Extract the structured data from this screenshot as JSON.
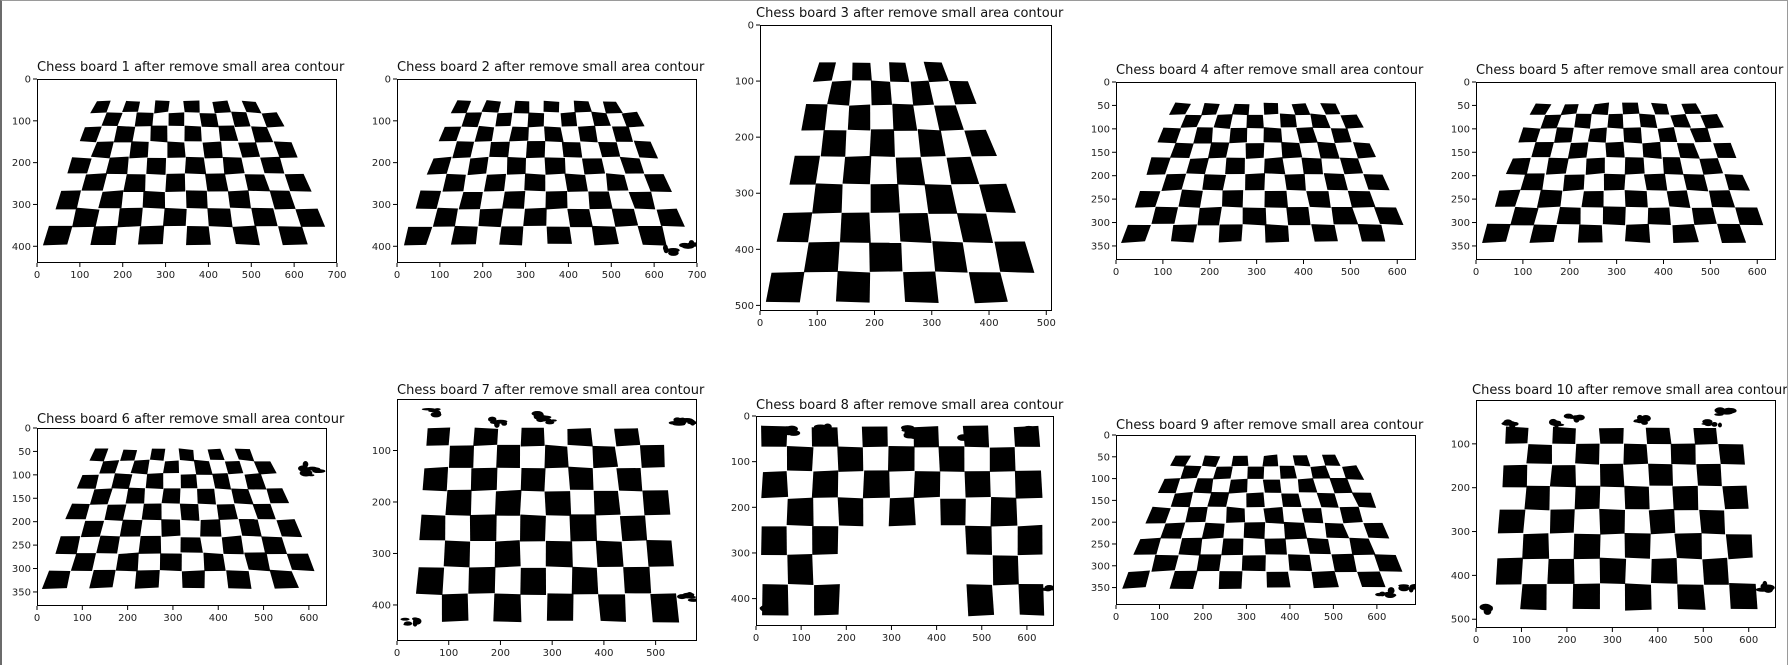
{
  "panels": [
    {
      "title": "Chess board 1 after remove small area contour",
      "xticks": [
        "0",
        "100",
        "200",
        "300",
        "400",
        "500",
        "600",
        "700"
      ],
      "xmax": 700,
      "yticks": [
        "0",
        "100",
        "200",
        "300",
        "400"
      ],
      "ymax": 440,
      "board": "persp",
      "noise": "none"
    },
    {
      "title": "Chess board 2 after remove small area contour",
      "xticks": [
        "0",
        "100",
        "200",
        "300",
        "400",
        "500",
        "600",
        "700"
      ],
      "xmax": 700,
      "yticks": [
        "0",
        "100",
        "200",
        "300",
        "400"
      ],
      "ymax": 440,
      "board": "persp",
      "noise": "corner"
    },
    {
      "title": "Chess board 3 after remove small area contour",
      "xticks": [
        "0",
        "100",
        "200",
        "300",
        "400",
        "500"
      ],
      "xmax": 510,
      "yticks": [
        "0",
        "100",
        "200",
        "300",
        "400",
        "500"
      ],
      "ymax": 510,
      "board": "tall",
      "noise": "none"
    },
    {
      "title": "Chess board 4 after remove small area contour",
      "xticks": [
        "0",
        "100",
        "200",
        "300",
        "400",
        "500",
        "600"
      ],
      "xmax": 640,
      "yticks": [
        "0",
        "50",
        "100",
        "150",
        "200",
        "250",
        "300",
        "350"
      ],
      "ymax": 380,
      "board": "persp",
      "noise": "none"
    },
    {
      "title": "Chess board 5 after remove small area contour",
      "xticks": [
        "0",
        "100",
        "200",
        "300",
        "400",
        "500",
        "600"
      ],
      "xmax": 640,
      "yticks": [
        "0",
        "50",
        "100",
        "150",
        "200",
        "250",
        "300",
        "350"
      ],
      "ymax": 380,
      "board": "persp",
      "noise": "none"
    },
    {
      "title": "Chess board 6 after remove small area contour",
      "xticks": [
        "0",
        "100",
        "200",
        "300",
        "400",
        "500",
        "600"
      ],
      "xmax": 640,
      "yticks": [
        "0",
        "50",
        "100",
        "150",
        "200",
        "250",
        "300",
        "350"
      ],
      "ymax": 380,
      "board": "persp",
      "noise": "right-blob"
    },
    {
      "title": "Chess board 7 after remove small area contour",
      "xticks": [
        "0",
        "100",
        "200",
        "300",
        "400",
        "500"
      ],
      "xmax": 580,
      "yticks": [
        "100",
        "200",
        "300",
        "400"
      ],
      "ymax": 470,
      "board": "wide",
      "noise": "top"
    },
    {
      "title": "Chess board 8 after remove small area contour",
      "xticks": [
        "0",
        "100",
        "200",
        "300",
        "400",
        "500",
        "600"
      ],
      "xmax": 660,
      "yticks": [
        "0",
        "100",
        "200",
        "300",
        "400"
      ],
      "ymax": 460,
      "board": "split",
      "noise": "top"
    },
    {
      "title": "Chess board 9 after remove small area contour",
      "xticks": [
        "0",
        "100",
        "200",
        "300",
        "400",
        "500",
        "600"
      ],
      "xmax": 690,
      "yticks": [
        "0",
        "50",
        "100",
        "150",
        "200",
        "250",
        "300",
        "350"
      ],
      "ymax": 390,
      "board": "persp",
      "noise": "corner"
    },
    {
      "title": "Chess board 10 after remove small area contour",
      "xticks": [
        "0",
        "100",
        "200",
        "300",
        "400",
        "500",
        "600"
      ],
      "xmax": 660,
      "yticks": [
        "100",
        "200",
        "300",
        "400",
        "500"
      ],
      "ymax": 520,
      "board": "wide",
      "noise": "top"
    }
  ]
}
